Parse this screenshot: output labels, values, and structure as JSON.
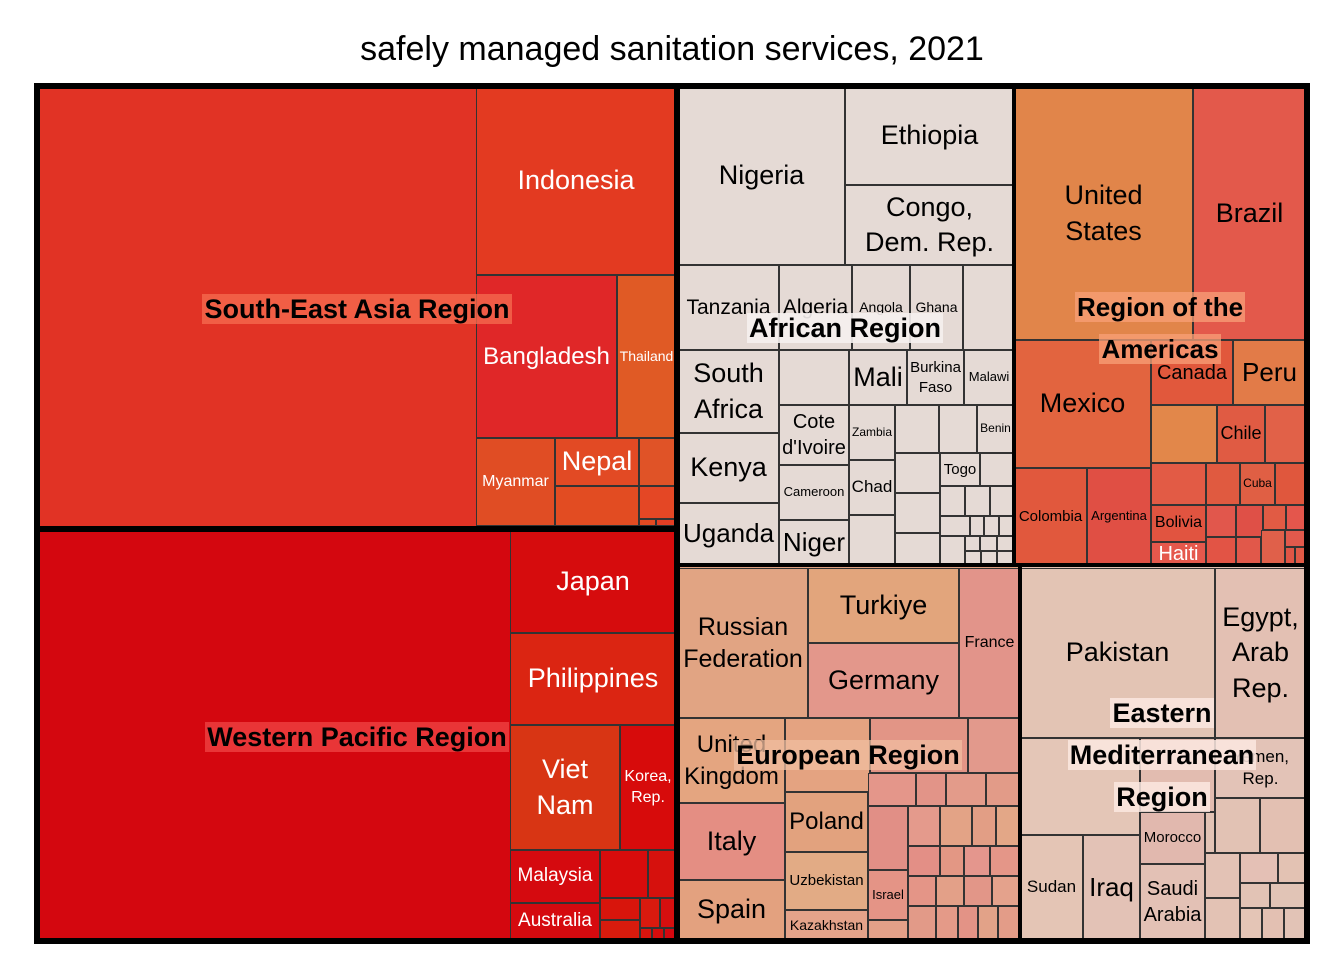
{
  "chart_data": {
    "type": "treemap",
    "title": "safely managed sanitation services, 2021",
    "regions": [
      {
        "name": "South-East Asia Region",
        "color": "#e13325",
        "countries": [
          "Indonesia",
          "Bangladesh",
          "Thailand",
          "Nepal",
          "Myanmar"
        ]
      },
      {
        "name": "Western Pacific Region",
        "color": "#d4070f",
        "countries": [
          "Japan",
          "Philippines",
          "Viet Nam",
          "Korea, Rep.",
          "Malaysia",
          "Australia"
        ]
      },
      {
        "name": "African Region",
        "color": "#e5dad5",
        "countries": [
          "Nigeria",
          "Ethiopia",
          "Congo, Dem. Rep.",
          "Tanzania",
          "Algeria",
          "Angola",
          "Ghana",
          "South Africa",
          "Mali",
          "Burkina Faso",
          "Malawi",
          "Kenya",
          "Cote d'Ivoire",
          "Zambia",
          "Benin",
          "Cameroon",
          "Chad",
          "Togo",
          "Uganda",
          "Niger"
        ]
      },
      {
        "name": "Region of the Americas",
        "color": "#e1844b",
        "countries": [
          "United States",
          "Brazil",
          "Mexico",
          "Canada",
          "Peru",
          "Chile",
          "Cuba",
          "Colombia",
          "Argentina",
          "Bolivia",
          "Haiti"
        ]
      },
      {
        "name": "European Region",
        "color": "#e0a282",
        "countries": [
          "Russian Federation",
          "Turkiye",
          "Germany",
          "France",
          "United Kingdom",
          "Italy",
          "Spain",
          "Poland",
          "Uzbekistan",
          "Kazakhstan",
          "Israel"
        ]
      },
      {
        "name": "Eastern Mediterranean Region",
        "color": "#e2c0b2",
        "countries": [
          "Pakistan",
          "Egypt, Arab Rep.",
          "Yemen, Rep.",
          "Morocco",
          "Sudan",
          "Iraq",
          "Saudi Arabia"
        ]
      }
    ]
  }
}
